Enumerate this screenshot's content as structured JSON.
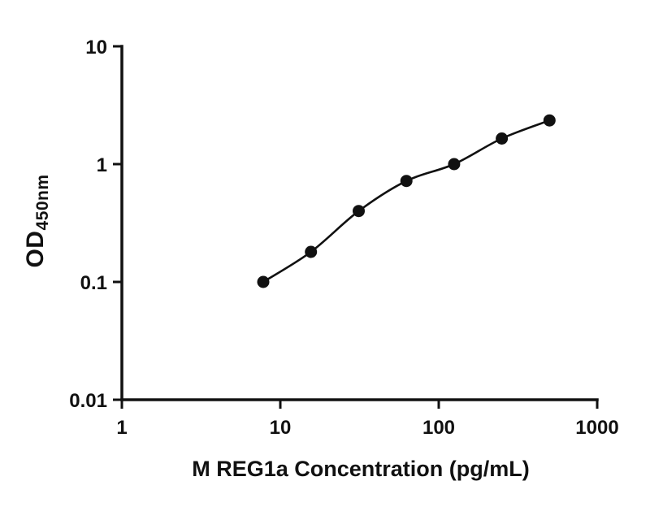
{
  "chart_data": {
    "type": "scatter",
    "title": "",
    "xlabel": "M REG1a Concentration (pg/mL)",
    "ylabel": "OD",
    "ylabel_subscript": "450nm",
    "xscale": "log",
    "yscale": "log",
    "xlim": [
      1,
      1000
    ],
    "ylim": [
      0.01,
      10
    ],
    "x": [
      7.8,
      15.6,
      31.25,
      62.5,
      125,
      250,
      500
    ],
    "y": [
      0.1,
      0.18,
      0.4,
      0.72,
      1.0,
      1.65,
      2.35
    ],
    "x_ticks": [
      1,
      10,
      100,
      1000
    ],
    "x_tick_labels": [
      "1",
      "10",
      "100",
      "1000"
    ],
    "y_ticks": [
      10,
      1,
      0.1,
      0.01
    ],
    "y_tick_labels": [
      "10",
      "1",
      "0.1",
      "0.01"
    ],
    "grid": false,
    "legend": false,
    "line_color": "#111111",
    "marker_color": "#111111",
    "axis_color": "#111111"
  }
}
